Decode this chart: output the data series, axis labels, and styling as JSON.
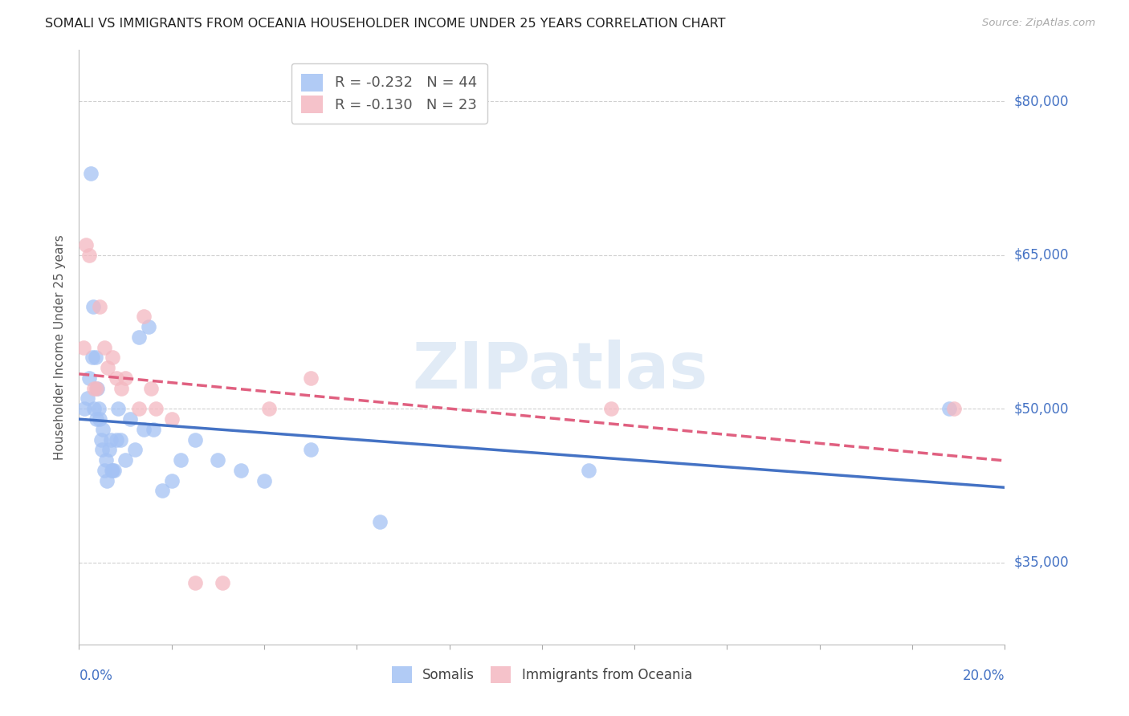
{
  "title": "SOMALI VS IMMIGRANTS FROM OCEANIA HOUSEHOLDER INCOME UNDER 25 YEARS CORRELATION CHART",
  "source": "Source: ZipAtlas.com",
  "ylabel": "Householder Income Under 25 years",
  "xlim": [
    0.0,
    20.0
  ],
  "ylim": [
    27000,
    85000
  ],
  "yticks": [
    35000,
    50000,
    65000,
    80000
  ],
  "ytick_labels": [
    "$35,000",
    "$50,000",
    "$65,000",
    "$80,000"
  ],
  "somali_R": "-0.232",
  "somali_N": "44",
  "oceania_R": "-0.130",
  "oceania_N": "23",
  "somali_color": "#a4c2f4",
  "oceania_color": "#f4b8c1",
  "somali_line_color": "#4472c4",
  "oceania_line_color": "#e06080",
  "axis_label_color": "#4472c4",
  "watermark_color": "#dce6f8",
  "grid_color": "#d0d0d0",
  "legend_edge_color": "#cccccc",
  "somali_x": [
    0.12,
    0.18,
    0.22,
    0.25,
    0.28,
    0.3,
    0.32,
    0.35,
    0.38,
    0.4,
    0.42,
    0.45,
    0.48,
    0.5,
    0.52,
    0.55,
    0.58,
    0.6,
    0.65,
    0.68,
    0.7,
    0.72,
    0.75,
    0.8,
    0.85,
    0.9,
    1.0,
    1.1,
    1.2,
    1.3,
    1.4,
    1.5,
    1.6,
    1.8,
    2.0,
    2.2,
    2.5,
    3.0,
    3.5,
    4.0,
    5.0,
    6.5,
    11.0,
    18.8
  ],
  "somali_y": [
    50000,
    51000,
    53000,
    73000,
    55000,
    60000,
    50000,
    55000,
    49000,
    52000,
    50000,
    49000,
    47000,
    46000,
    48000,
    44000,
    45000,
    43000,
    46000,
    47000,
    44000,
    44000,
    44000,
    47000,
    50000,
    47000,
    45000,
    49000,
    46000,
    57000,
    48000,
    58000,
    48000,
    42000,
    43000,
    45000,
    47000,
    45000,
    44000,
    43000,
    46000,
    39000,
    44000,
    50000
  ],
  "oceania_x": [
    0.1,
    0.15,
    0.22,
    0.32,
    0.38,
    0.45,
    0.55,
    0.62,
    0.72,
    0.8,
    0.92,
    1.0,
    1.3,
    1.4,
    1.55,
    1.65,
    2.0,
    2.5,
    3.1,
    4.1,
    5.0,
    11.5,
    18.9
  ],
  "oceania_y": [
    56000,
    66000,
    65000,
    52000,
    52000,
    60000,
    56000,
    54000,
    55000,
    53000,
    52000,
    53000,
    50000,
    59000,
    52000,
    50000,
    49000,
    33000,
    33000,
    50000,
    53000,
    50000,
    50000
  ]
}
